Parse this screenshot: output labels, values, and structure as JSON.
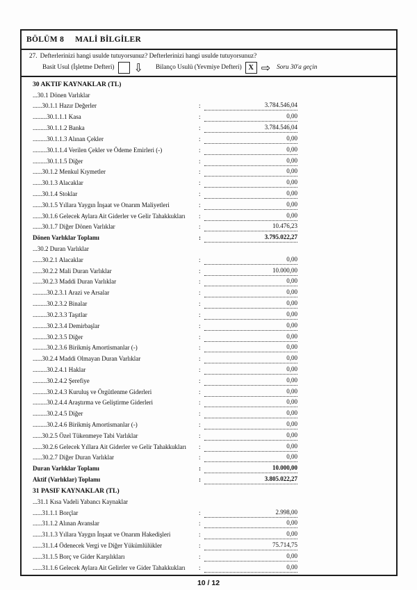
{
  "header": {
    "section": "BÖLÜM 8",
    "title": "MALİ BİLGİLER"
  },
  "question": {
    "number": "27.",
    "text": "Defterlerinizi hangi usulde tutuyorsunuz? Defterlerinizi hangi usulde tutuyorsunuz?",
    "option1_label": "Basit Usul (İşletme Defteri)",
    "option1_value": "",
    "option2_label": "Bilanço Usulü (Yevmiye Defteri)",
    "option2_value": "X",
    "down_arrow": "⇩",
    "right_arrow": "⇨",
    "skip_note": "Soru 30'a geçin"
  },
  "rows": [
    {
      "label": "30 AKTIF KAYNAKLAR (TL)",
      "style": "section"
    },
    {
      "label": "...30.1 Dönen Varlıklar",
      "style": "plain"
    },
    {
      "label": "......30.1.1 Hazır Değerler",
      "value": "3.784.546,04"
    },
    {
      "label": ".........30.1.1.1 Kasa",
      "value": "0,00"
    },
    {
      "label": ".........30.1.1.2 Banka",
      "value": "3.784.546,04"
    },
    {
      "label": ".........30.1.1.3 Alınan Çekler",
      "value": "0,00"
    },
    {
      "label": ".........30.1.1.4 Verilen Çekler ve Ödeme Emirleri (-)",
      "value": "0,00"
    },
    {
      "label": ".........30.1.1.5 Diğer",
      "value": "0,00"
    },
    {
      "label": "......30.1.2 Menkul Kıymetler",
      "value": "0,00"
    },
    {
      "label": "......30.1.3 Alacaklar",
      "value": "0,00"
    },
    {
      "label": "......30.1.4 Stoklar",
      "value": "0,00"
    },
    {
      "label": "......30.1.5 Yıllara Yaygın İnşaat ve Onarım Maliyetleri",
      "value": "0,00"
    },
    {
      "label": "......30.1.6 Gelecek Aylara Ait Giderler ve Gelir Tahakkukları",
      "value": "0,00"
    },
    {
      "label": "......30.1.7 Diğer Dönen Varlıklar",
      "value": "10.476,23"
    },
    {
      "label": "Dönen Varlıklar Toplamı",
      "value": "3.795.022,27",
      "style": "total"
    },
    {
      "label": "...30.2 Duran Varlıklar",
      "style": "plain"
    },
    {
      "label": "......30.2.1 Alacaklar",
      "value": "0,00"
    },
    {
      "label": "......30.2.2 Mali Duran Varlıklar",
      "value": "10.000,00"
    },
    {
      "label": "......30.2.3 Maddi Duran Varlıklar",
      "value": "0,00"
    },
    {
      "label": ".........30.2.3.1 Arazi ve Arsalar",
      "value": "0,00"
    },
    {
      "label": ".........30.2.3.2 Binalar",
      "value": "0,00"
    },
    {
      "label": ".........30.2.3.3 Taşıtlar",
      "value": "0,00"
    },
    {
      "label": ".........30.2.3.4 Demirbaşlar",
      "value": "0,00"
    },
    {
      "label": ".........30.2.3.5 Diğer",
      "value": "0,00"
    },
    {
      "label": ".........30.2.3.6 Birikmiş Amortismanlar (-)",
      "value": "0,00"
    },
    {
      "label": "......30.2.4 Maddi Olmayan Duran Varlıklar",
      "value": "0,00"
    },
    {
      "label": ".........30.2.4.1 Haklar",
      "value": "0,00"
    },
    {
      "label": ".........30.2.4.2 Şerefiye",
      "value": "0,00"
    },
    {
      "label": ".........30.2.4.3 Kuruluş ve Örgütlenme Giderleri",
      "value": "0,00"
    },
    {
      "label": ".........30.2.4.4 Araştırma ve Geliştirme Giderleri",
      "value": "0,00"
    },
    {
      "label": ".........30.2.4.5 Diğer",
      "value": "0,00"
    },
    {
      "label": ".........30.2.4.6 Birikmiş Amortismanlar (-)",
      "value": "0,00"
    },
    {
      "label": "......30.2.5 Özel Tükenmeye Tabi Varlıklar",
      "value": "0,00"
    },
    {
      "label": "......30.2.6 Gelecek Yıllara Ait Giderler ve Gelir Tahakkukları",
      "value": "0,00"
    },
    {
      "label": "......30.2.7 Diğer Duran Varlıklar",
      "value": "0,00"
    },
    {
      "label": "Duran Varlıklar Toplamı",
      "value": "10.000,00",
      "style": "total"
    },
    {
      "label": "Aktif (Varlıklar) Toplamı",
      "value": "3.805.022,27",
      "style": "total"
    },
    {
      "label": "31 PASIF KAYNAKLAR (TL)",
      "style": "section"
    },
    {
      "label": "...31.1 Kısa Vadeli Yabancı Kaynaklar",
      "style": "plain"
    },
    {
      "label": "......31.1.1 Borçlar",
      "value": "2.998,00"
    },
    {
      "label": "......31.1.2 Alınan Avanslar",
      "value": "0,00"
    },
    {
      "label": "......31.1.3 Yıllara Yaygın İnşaat ve Onarım Hakedişleri",
      "value": "0,00"
    },
    {
      "label": "......31.1.4 Ödenecek Vergi ve Diğer Yükümlülükler",
      "value": "75.714,75"
    },
    {
      "label": "......31.1.5 Borç ve Gider Karşılıkları",
      "value": "0,00"
    },
    {
      "label": "......31.1.6 Gelecek Aylara Ait Gelirler ve Gider Tahakkukları",
      "value": "0,00"
    }
  ],
  "footer": {
    "page_indicator": "10 / 12"
  }
}
